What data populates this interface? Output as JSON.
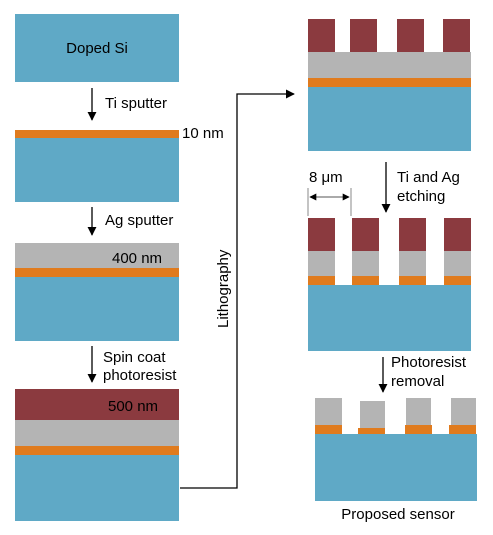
{
  "colors": {
    "silicon": "#5fa9c6",
    "titanium": "#e07b1e",
    "silver": "#b4b4b4",
    "photoresist": "#8b3a3f",
    "arrow": "#000000"
  },
  "labels": {
    "doped_si": "Doped Si",
    "ti_sputter": "Ti sputter",
    "ti_thickness": "10 nm",
    "ag_sputter": "Ag sputter",
    "ag_thickness": "400 nm",
    "spin_coat_line1": "Spin coat",
    "spin_coat_line2": "photoresist",
    "pr_thickness": "500 nm",
    "lithography": "Lithography",
    "pitch": "8 μm",
    "etch_line1": "Ti and Ag",
    "etch_line2": "etching",
    "removal_line1": "Photoresist",
    "removal_line2": "removal",
    "proposed_sensor": "Proposed sensor"
  }
}
